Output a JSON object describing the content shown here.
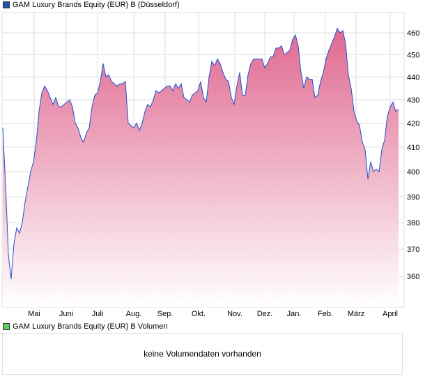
{
  "legend_price": "GAM Luxury Brands Equity (EUR) B (Düsseldorf)",
  "legend_volume": "GAM Luxury Brands Equity (EUR) B Volumen",
  "volume_message": "keine Volumendaten vorhanden",
  "colors": {
    "line": "#1f4fd0",
    "fill_top": "#e06890",
    "fill_bottom": "#ffffff",
    "price_swatch": "#1f4fb0",
    "volume_swatch": "#5fcf5f",
    "grid": "#dddddd"
  },
  "chart_data": {
    "type": "area",
    "title": "GAM Luxury Brands Equity (EUR) B (Düsseldorf)",
    "y_scale": "log",
    "ylim": [
      348,
      467
    ],
    "y_ticks": [
      360,
      370,
      380,
      390,
      400,
      410,
      420,
      430,
      440,
      450,
      460
    ],
    "x_ticks": [
      {
        "label": "Mai",
        "index": 11.25
      },
      {
        "label": "Juni",
        "index": 22.75
      },
      {
        "label": "Juli",
        "index": 34
      },
      {
        "label": "Aug.",
        "index": 47
      },
      {
        "label": "Sep.",
        "index": 58.25
      },
      {
        "label": "Okt.",
        "index": 70.25
      },
      {
        "label": "Nov.",
        "index": 83.25
      },
      {
        "label": "Dez.",
        "index": 94
      },
      {
        "label": "Jan.",
        "index": 104.5
      },
      {
        "label": "Feb.",
        "index": 115.75
      },
      {
        "label": "März",
        "index": 126.75
      },
      {
        "label": "April",
        "index": 139
      }
    ],
    "values": [
      418,
      395,
      368,
      359,
      372,
      378,
      376,
      380,
      388,
      394,
      400,
      404,
      412,
      425,
      433,
      436,
      434,
      431,
      428,
      431,
      427,
      427,
      428,
      429,
      430,
      427,
      420,
      418,
      414,
      412,
      416,
      418,
      427,
      432,
      433,
      438,
      446,
      440,
      441,
      438,
      437,
      436,
      437,
      437,
      438,
      420,
      419,
      418,
      420,
      417,
      420,
      425,
      428,
      427,
      430,
      434,
      433,
      434,
      435,
      436,
      436,
      434,
      437,
      435,
      437,
      431,
      430,
      429,
      432,
      433,
      434,
      438,
      431,
      429,
      440,
      447,
      445,
      448,
      446,
      442,
      439,
      438,
      431,
      428,
      436,
      442,
      432,
      432,
      441,
      446,
      448,
      448,
      448,
      448,
      444,
      446,
      449,
      449,
      453,
      453,
      454,
      450,
      451,
      452,
      457,
      459,
      454,
      442,
      435,
      440,
      439,
      439,
      431,
      432,
      438,
      442,
      448,
      452,
      455,
      458,
      462,
      460,
      461,
      455,
      441,
      435,
      425,
      421,
      419,
      412,
      409,
      397,
      404,
      400,
      401,
      400,
      409,
      413,
      423,
      427,
      429,
      425,
      426
    ]
  }
}
